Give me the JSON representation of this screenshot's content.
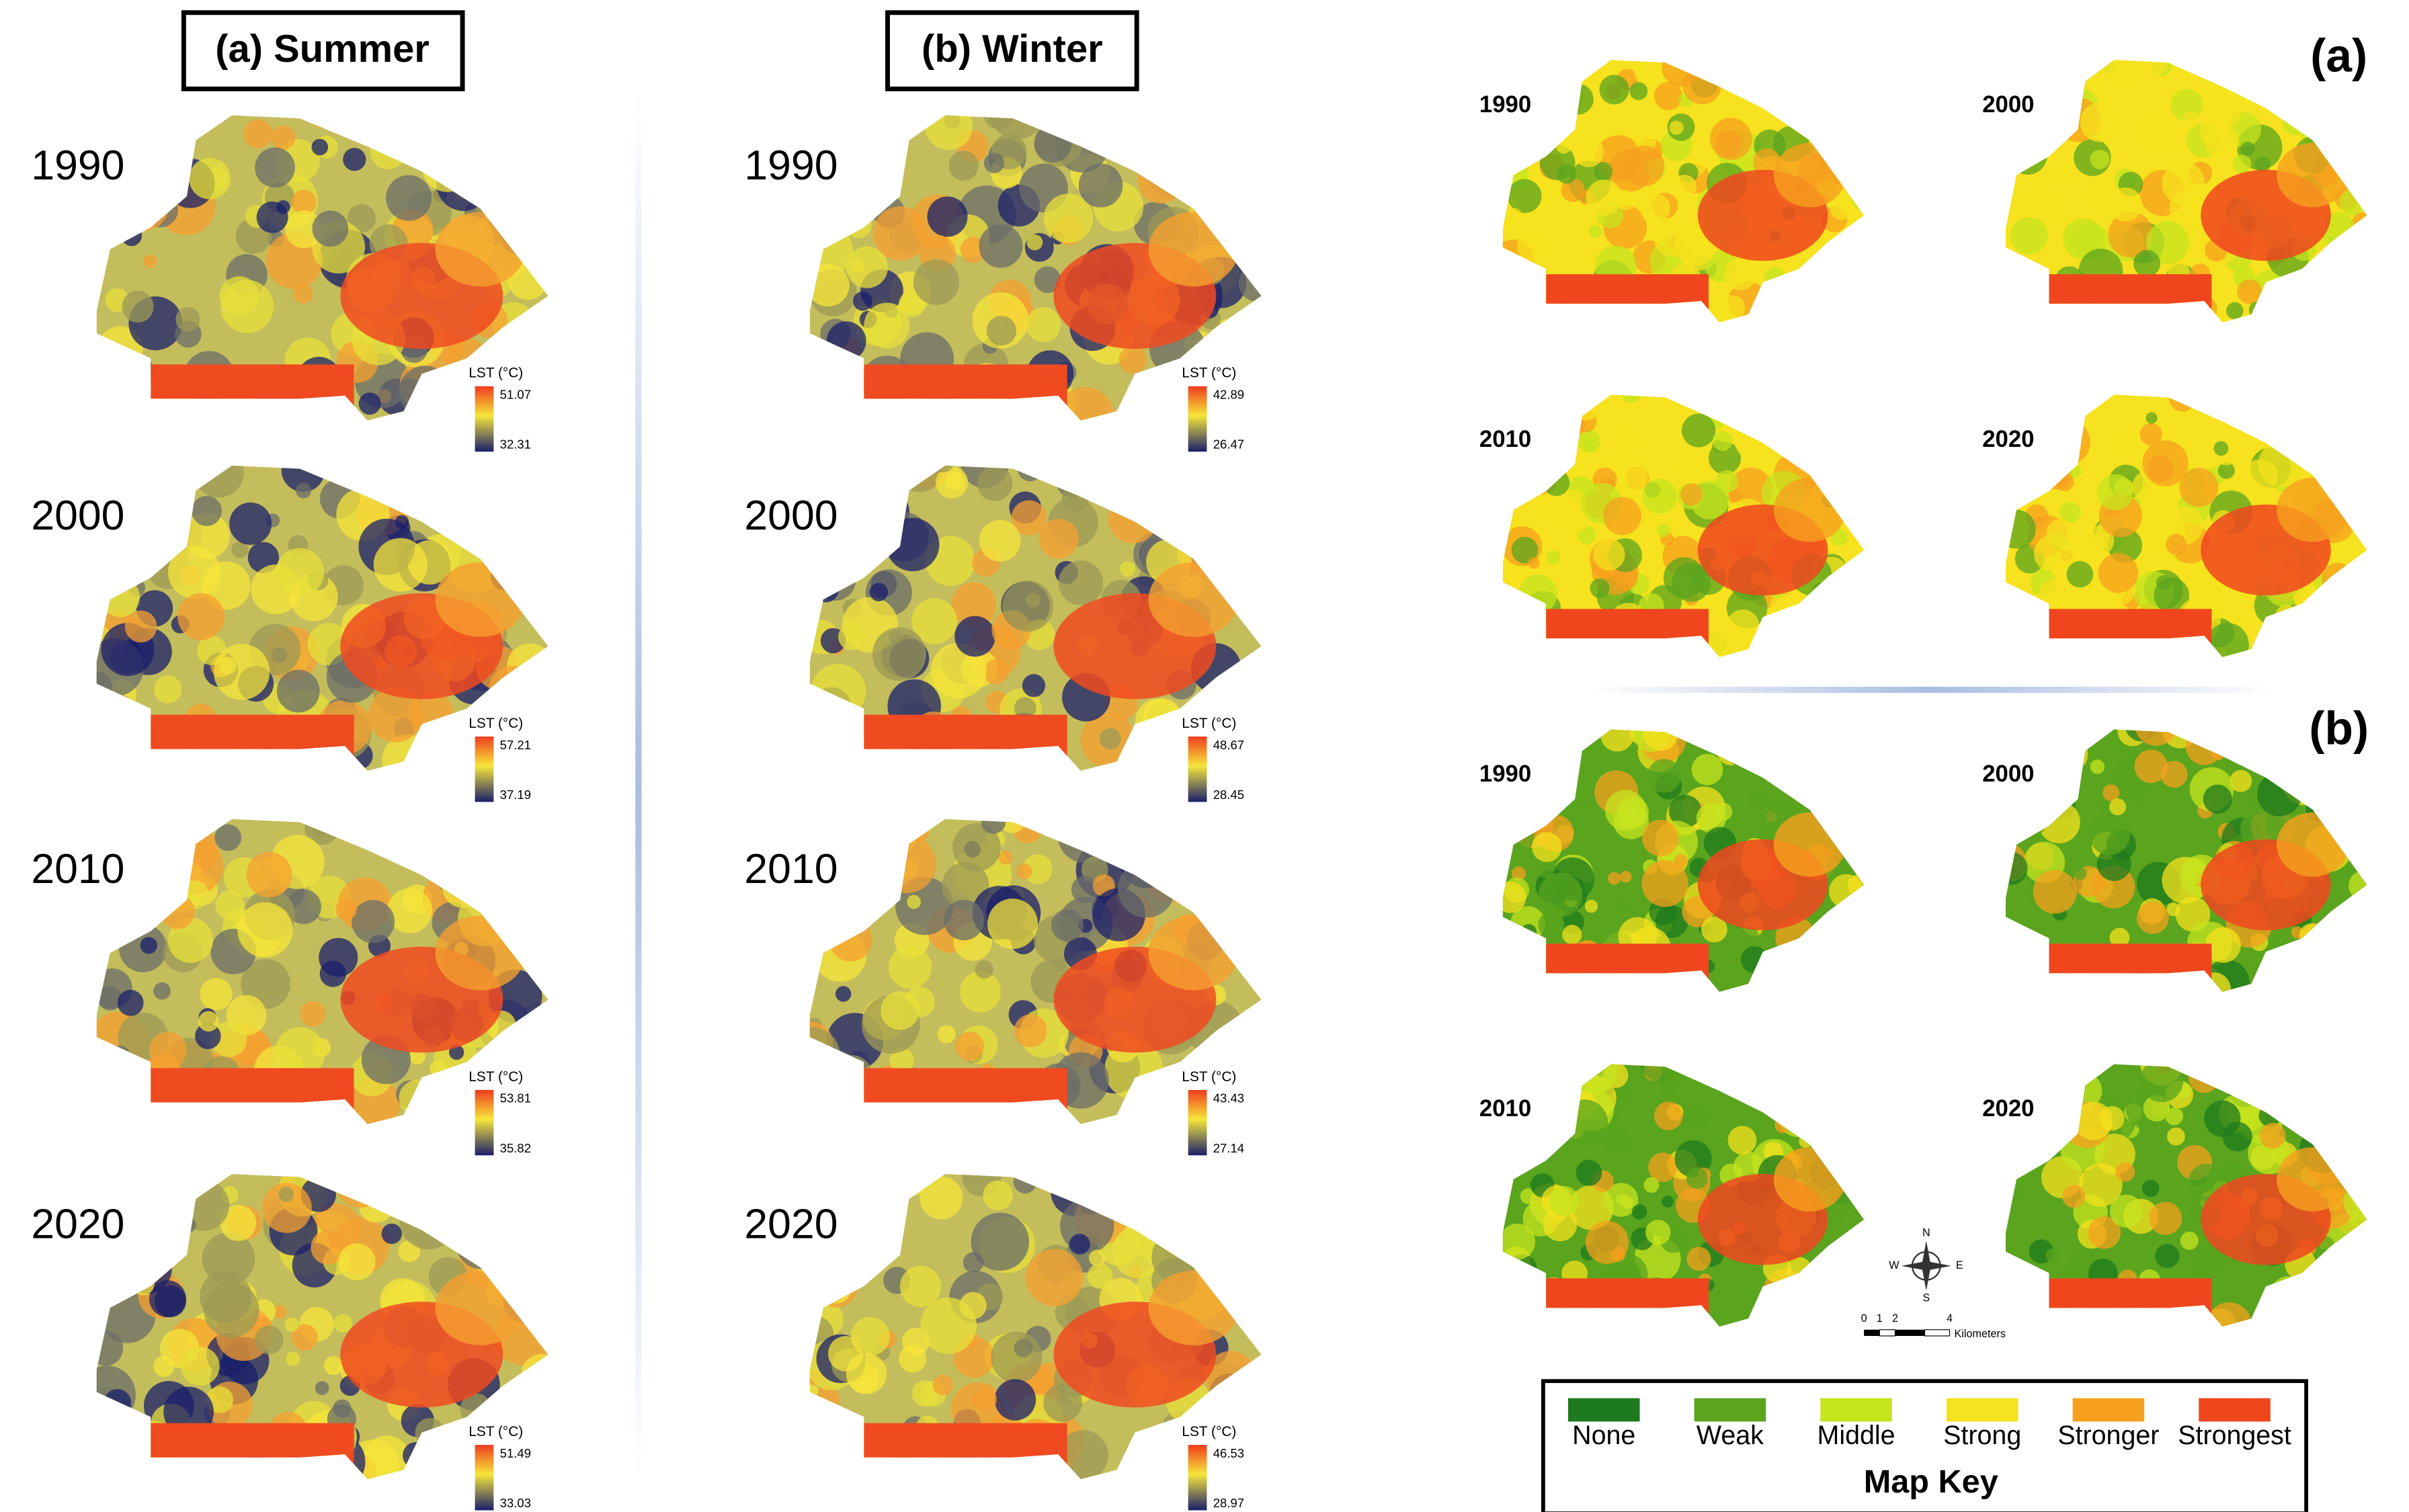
{
  "lst_panels": [
    {
      "title": "(a) Summer",
      "maps": [
        {
          "year": "1990",
          "legend_title": "LST (°C)",
          "max": 51.07,
          "min": 32.31
        },
        {
          "year": "2000",
          "legend_title": "LST (°C)",
          "max": 57.21,
          "min": 37.19
        },
        {
          "year": "2010",
          "legend_title": "LST (°C)",
          "max": 53.81,
          "min": 35.82
        },
        {
          "year": "2020",
          "legend_title": "LST (°C)",
          "max": 51.49,
          "min": 33.03
        }
      ]
    },
    {
      "title": "(b) Winter",
      "maps": [
        {
          "year": "1990",
          "legend_title": "LST (°C)",
          "max": 42.89,
          "min": 26.47
        },
        {
          "year": "2000",
          "legend_title": "LST (°C)",
          "max": 48.67,
          "min": 28.45
        },
        {
          "year": "2010",
          "legend_title": "LST (°C)",
          "max": 43.43,
          "min": 27.14
        },
        {
          "year": "2020",
          "legend_title": "LST (°C)",
          "max": 46.53,
          "min": 28.97
        }
      ]
    }
  ],
  "intensity_panels": [
    {
      "label": "(a)",
      "years": [
        "1990",
        "2000",
        "2010",
        "2020"
      ]
    },
    {
      "label": "(b)",
      "years": [
        "1990",
        "2000",
        "2010",
        "2020"
      ]
    }
  ],
  "compass": {
    "n": "N",
    "s": "S",
    "e": "E",
    "w": "W"
  },
  "scale_bar": {
    "ticks": [
      "0",
      "1",
      "2",
      "4"
    ],
    "unit": "Kilometers"
  },
  "map_key": {
    "title": "Map Key",
    "classes": [
      {
        "label": "None",
        "color": "#1e7a1e"
      },
      {
        "label": "Weak",
        "color": "#5aa41e"
      },
      {
        "label": "Middle",
        "color": "#c6e41e"
      },
      {
        "label": "Strong",
        "color": "#f6e21e"
      },
      {
        "label": "Stronger",
        "color": "#f6a01e"
      },
      {
        "label": "Strongest",
        "color": "#f0461e"
      }
    ]
  }
}
